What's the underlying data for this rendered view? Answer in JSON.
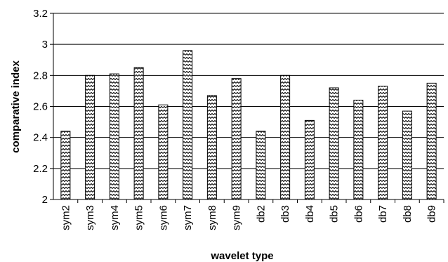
{
  "chart_data": {
    "type": "bar",
    "title": "",
    "xlabel": "wavelet type",
    "ylabel": "comparative index",
    "categories": [
      "sym2",
      "sym3",
      "sym4",
      "sym5",
      "sym6",
      "sym7",
      "sym8",
      "sym9",
      "db2",
      "db3",
      "db4",
      "db5",
      "db6",
      "db7",
      "db8",
      "db9"
    ],
    "values": [
      2.44,
      2.8,
      2.81,
      2.85,
      2.61,
      2.96,
      2.67,
      2.78,
      2.44,
      2.8,
      2.51,
      2.72,
      2.64,
      2.73,
      2.57,
      2.75
    ],
    "ylim": [
      2,
      3.2
    ],
    "yticks": [
      "2",
      "2.2",
      "2.4",
      "2.6",
      "2.8",
      "3",
      "3.2"
    ],
    "grid": "horizontal",
    "legend": "none",
    "bar_pattern": "zigzag hatch",
    "colors": {
      "bar_stroke": "#000000",
      "bar_pattern": "#000000",
      "bar_background": "#ffffff",
      "gridline": "#000000",
      "axis": "#000000"
    }
  }
}
